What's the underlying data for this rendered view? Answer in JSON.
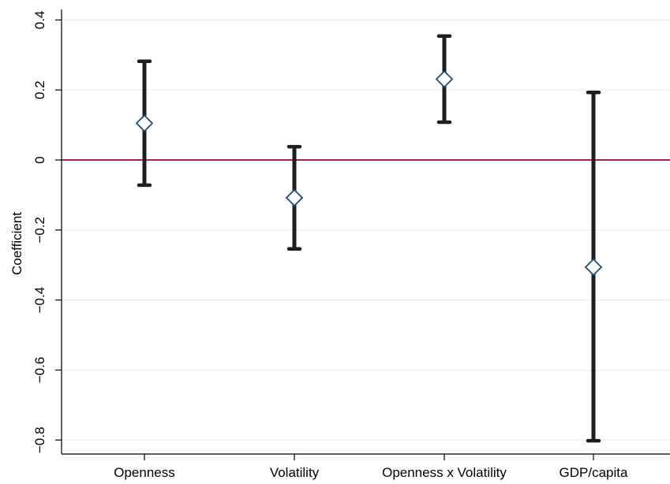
{
  "chart_data": {
    "type": "scatter",
    "title": "",
    "xlabel": "",
    "ylabel": "Coefficient",
    "categories": [
      "Openness",
      "Volatility",
      "Openness x Volatility",
      "GDP/capita"
    ],
    "points": [
      {
        "category": "Openness",
        "estimate": 0.105,
        "lower": -0.072,
        "upper": 0.282
      },
      {
        "category": "Volatility",
        "estimate": -0.108,
        "lower": -0.254,
        "upper": 0.038
      },
      {
        "category": "Openness x Volatility",
        "estimate": 0.231,
        "lower": 0.108,
        "upper": 0.354
      },
      {
        "category": "GDP/capita",
        "estimate": -0.306,
        "lower": -0.802,
        "upper": 0.193
      }
    ],
    "ylim": [
      -0.84,
      0.43
    ],
    "yticks": [
      -0.8,
      -0.6,
      -0.4,
      -0.2,
      0,
      0.2,
      0.4
    ],
    "ytick_labels": [
      "−0.8",
      "−0.6",
      "−0.4",
      "−0.2",
      "0",
      "0.2",
      "0.4"
    ],
    "reference_line": {
      "y": 0,
      "color": "#a0144f"
    },
    "grid": true,
    "colors": {
      "grid": "#e8eef1",
      "error_bar": "#1e1e1e",
      "marker": "#1f4e74",
      "axis": "#000000"
    },
    "marker_shape": "hollow-diamond"
  }
}
